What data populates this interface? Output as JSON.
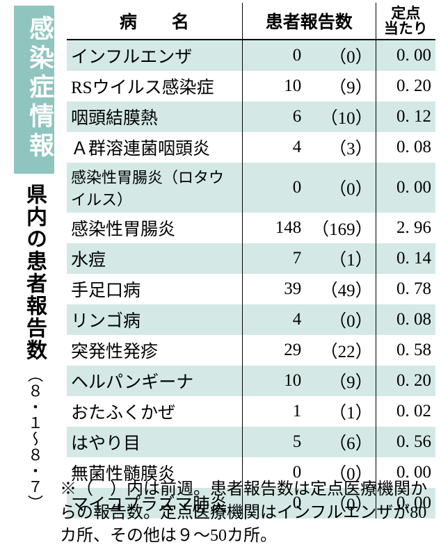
{
  "badge_title": "感染症情報",
  "subtitle": "県内の患者報告数",
  "date_range": "（８・１〜８・７）",
  "header": {
    "name": "病　　名",
    "count": "患者報告数",
    "per_point_l1": "定点",
    "per_point_l2": "当たり"
  },
  "rows": [
    {
      "name": "インフルエンザ",
      "count": "0",
      "prev": "（0）",
      "per": "0. 00",
      "small": false
    },
    {
      "name": "RSウイルス感染症",
      "count": "10",
      "prev": "（9）",
      "per": "0. 20",
      "small": false
    },
    {
      "name": "咽頭結膜熱",
      "count": "6",
      "prev": "（10）",
      "per": "0. 12",
      "small": false
    },
    {
      "name": "Ａ群溶連菌咽頭炎",
      "count": "4",
      "prev": "（3）",
      "per": "0. 08",
      "small": false
    },
    {
      "name": "感染性胃腸炎（ロタウイルス）",
      "count": "0",
      "prev": "（0）",
      "per": "0. 00",
      "small": true
    },
    {
      "name": "感染性胃腸炎",
      "count": "148",
      "prev": "（169）",
      "per": "2. 96",
      "small": false
    },
    {
      "name": "水痘",
      "count": "7",
      "prev": "（1）",
      "per": "0. 14",
      "small": false
    },
    {
      "name": "手足口病",
      "count": "39",
      "prev": "（49）",
      "per": "0. 78",
      "small": false
    },
    {
      "name": "リンゴ病",
      "count": "4",
      "prev": "（0）",
      "per": "0. 08",
      "small": false
    },
    {
      "name": "突発性発疹",
      "count": "29",
      "prev": "（22）",
      "per": "0. 58",
      "small": false
    },
    {
      "name": "ヘルパンギーナ",
      "count": "10",
      "prev": "（9）",
      "per": "0. 20",
      "small": false
    },
    {
      "name": "おたふくかぜ",
      "count": "1",
      "prev": "（1）",
      "per": "0. 02",
      "small": false
    },
    {
      "name": "はやり目",
      "count": "5",
      "prev": "（6）",
      "per": "0. 56",
      "small": false
    },
    {
      "name": "無菌性髄膜炎",
      "count": "0",
      "prev": "（0）",
      "per": "0. 00",
      "small": false
    },
    {
      "name": "マイコプラズマ肺炎",
      "count": "0",
      "prev": "（0）",
      "per": "0. 00",
      "small": false
    }
  ],
  "footnote": "※（　）内は前週。患者報告数は定点医療機関からの報告数。定点医療機関はインフルエンザが80カ所、その他は９〜50カ所。",
  "colors": {
    "badge_bg": "#8fc4bf",
    "badge_fg": "#ffffff",
    "row_stripe": "#d4e9e6",
    "row_plain": "#ffffff",
    "text": "#000000",
    "rule": "#000000"
  }
}
